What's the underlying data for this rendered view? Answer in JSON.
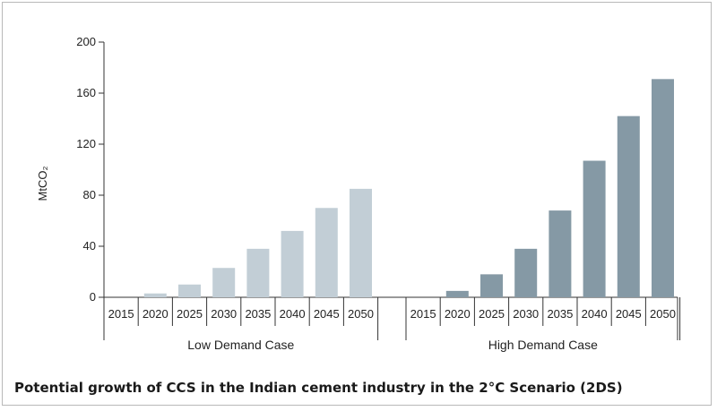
{
  "caption": "Potential growth of CCS in the Indian cement industry in the 2°C Scenario (2DS)",
  "chart_data": {
    "type": "bar",
    "ylabel": "MtCO₂",
    "ylim": [
      0,
      200
    ],
    "yticks": [
      0,
      40,
      80,
      120,
      160,
      200
    ],
    "categories": [
      "2015",
      "2020",
      "2025",
      "2030",
      "2035",
      "2040",
      "2045",
      "2050"
    ],
    "groups": [
      {
        "name": "Low Demand Case",
        "color": "#c2ced6",
        "values": [
          0,
          3,
          10,
          23,
          38,
          52,
          70,
          85
        ]
      },
      {
        "name": "High Demand Case",
        "color": "#8599a5",
        "values": [
          0,
          5,
          18,
          38,
          68,
          107,
          142,
          171
        ]
      }
    ],
    "grid": false,
    "legend": "none"
  }
}
